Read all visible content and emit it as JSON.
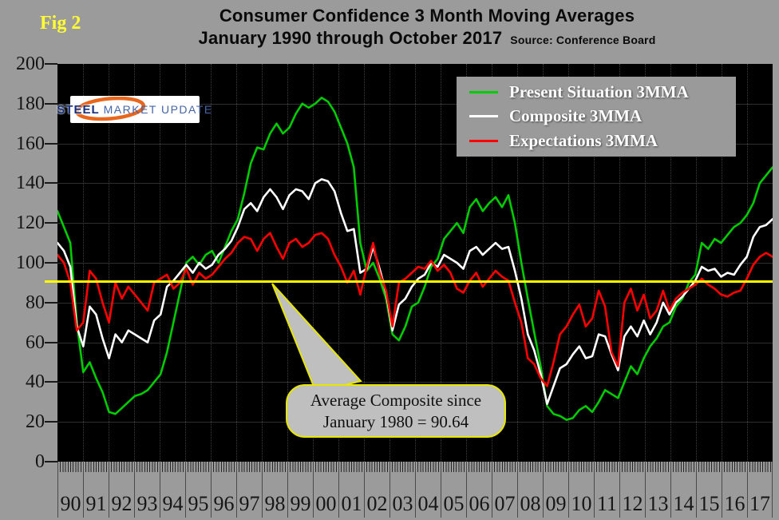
{
  "header": {
    "fig_label": "Fig 2",
    "title_line1": "Consumer Confidence 3 Month Moving Averages",
    "title_line2": "January 1990 through October 2017",
    "source": "Source: Conference Board"
  },
  "logo": {
    "word1": "STEEL",
    "word2": "MARKET",
    "word3": "UPDATE"
  },
  "legend": {
    "items": [
      {
        "label": "Present Situation 3MMA",
        "color": "#00CC00"
      },
      {
        "label": "Composite 3MMA",
        "color": "#FFFFFF"
      },
      {
        "label": "Expectations 3MMA",
        "color": "#FF0000"
      }
    ]
  },
  "callout": {
    "line1": "Average Composite since",
    "line2": "January 1980 = 90.64"
  },
  "colors": {
    "page_bg": "#9B9B9B",
    "plot_bg": "#000000",
    "avg_line": "#FFFF00",
    "callout_bg": "#BFBFBF",
    "callout_border": "#E6E600"
  },
  "chart_data": {
    "type": "line",
    "title": "Consumer Confidence 3 Month Moving Averages, January 1990 through October 2017",
    "source": "Conference Board",
    "ylim": [
      0,
      200
    ],
    "ytick_interval": 20,
    "y_tick_labels": [
      "200",
      "180",
      "160",
      "140",
      "120",
      "100",
      "80",
      "60",
      "40",
      "20",
      "0"
    ],
    "x_tick_labels": [
      "90",
      "91",
      "92",
      "93",
      "94",
      "95",
      "96",
      "97",
      "98",
      "99",
      "00",
      "01",
      "02",
      "03",
      "04",
      "05",
      "06",
      "07",
      "08",
      "09",
      "10",
      "11",
      "12",
      "13",
      "14",
      "15",
      "16",
      "17"
    ],
    "x_sampling": "quarterly (Jan, Apr, Jul, Oct) from Jan 1990 to Oct 2017",
    "total_months": 334,
    "grid": "horizontal solid every 20 units, vertical dotted every year",
    "legend_position": "top-right inside plot",
    "reference_line": {
      "value": 90.64,
      "color": "#FFFF00",
      "label": "Average Composite since January 1980 = 90.64"
    },
    "series": [
      {
        "name": "Present Situation 3MMA",
        "color": "#00CC00",
        "values": [
          126,
          118,
          110,
          70,
          45,
          50,
          42,
          35,
          25,
          24,
          27,
          30,
          33,
          34,
          36,
          40,
          44,
          55,
          70,
          85,
          100,
          103,
          99,
          104,
          106,
          100,
          108,
          116,
          122,
          135,
          150,
          158,
          157,
          165,
          170,
          165,
          168,
          175,
          180,
          178,
          180,
          183,
          181,
          176,
          168,
          160,
          148,
          110,
          96,
          100,
          92,
          82,
          64,
          61,
          68,
          78,
          80,
          88,
          98,
          102,
          112,
          116,
          120,
          115,
          128,
          132,
          126,
          130,
          133,
          128,
          134,
          120,
          100,
          82,
          65,
          48,
          28,
          24,
          23,
          21,
          22,
          26,
          28,
          25,
          30,
          36,
          34,
          32,
          40,
          48,
          44,
          52,
          58,
          62,
          68,
          70,
          78,
          82,
          90,
          94,
          110,
          107,
          112,
          110,
          114,
          118,
          120,
          124,
          130,
          140,
          144,
          148
        ]
      },
      {
        "name": "Composite 3MMA",
        "color": "#FFFFFF",
        "values": [
          110,
          106,
          98,
          68,
          58,
          78,
          74,
          62,
          52,
          64,
          60,
          66,
          64,
          62,
          60,
          71,
          74,
          88,
          91,
          95,
          99,
          95,
          100,
          97,
          99,
          104,
          107,
          111,
          118,
          127,
          130,
          126,
          133,
          137,
          133,
          127,
          134,
          137,
          136,
          132,
          140,
          142,
          141,
          136,
          125,
          116,
          117,
          95,
          97,
          108,
          97,
          85,
          66,
          79,
          82,
          88,
          92,
          94,
          100,
          98,
          104,
          102,
          100,
          97,
          106,
          108,
          104,
          107,
          110,
          107,
          108,
          96,
          82,
          64,
          56,
          44,
          29,
          38,
          47,
          49,
          54,
          58,
          52,
          53,
          64,
          63,
          54,
          46,
          63,
          68,
          63,
          71,
          64,
          70,
          80,
          74,
          80,
          83,
          87,
          91,
          98,
          96,
          97,
          93,
          95,
          94,
          99,
          103,
          113,
          118,
          119,
          122
        ]
      },
      {
        "name": "Expectations 3MMA",
        "color": "#FF0000",
        "values": [
          104,
          100,
          90,
          66,
          70,
          96,
          92,
          80,
          70,
          90,
          82,
          88,
          84,
          80,
          76,
          90,
          92,
          94,
          87,
          90,
          97,
          89,
          95,
          92,
          94,
          98,
          102,
          105,
          110,
          113,
          112,
          106,
          112,
          115,
          108,
          102,
          110,
          112,
          108,
          110,
          114,
          115,
          112,
          104,
          98,
          90,
          96,
          84,
          98,
          110,
          95,
          86,
          68,
          90,
          92,
          95,
          98,
          97,
          101,
          96,
          99,
          95,
          87,
          85,
          91,
          95,
          88,
          92,
          96,
          93,
          91,
          80,
          70,
          52,
          49,
          42,
          38,
          50,
          64,
          68,
          74,
          79,
          68,
          72,
          86,
          78,
          55,
          48,
          80,
          87,
          76,
          84,
          72,
          76,
          86,
          76,
          82,
          85,
          87,
          89,
          92,
          89,
          87,
          84,
          83,
          85,
          86,
          92,
          99,
          103,
          105,
          103
        ]
      }
    ]
  }
}
